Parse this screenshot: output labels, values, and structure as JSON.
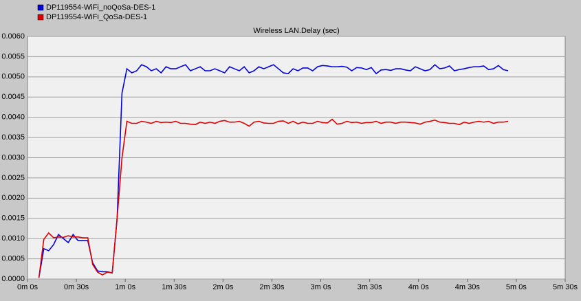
{
  "chart_data": {
    "type": "line",
    "title": "Wireless LAN.Delay (sec)",
    "x": [
      7,
      10,
      13,
      16,
      19,
      22,
      25,
      28,
      31,
      34,
      37,
      40,
      43,
      46,
      49,
      52,
      55,
      58,
      61,
      64,
      67,
      70,
      73,
      76,
      79,
      82,
      85,
      88,
      91,
      94,
      97,
      100,
      103,
      106,
      109,
      112,
      115,
      118,
      121,
      124,
      127,
      130,
      133,
      136,
      139,
      142,
      145,
      148,
      151,
      154,
      157,
      160,
      163,
      166,
      169,
      172,
      175,
      178,
      181,
      184,
      187,
      190,
      193,
      196,
      199,
      202,
      205,
      208,
      211,
      214,
      217,
      220,
      223,
      226,
      229,
      232,
      235,
      238,
      241,
      244,
      247,
      250,
      253,
      256,
      259,
      262,
      265,
      268,
      271,
      274,
      277,
      280,
      283,
      286,
      289,
      292,
      295
    ],
    "series": [
      {
        "name": "DP119554-WiFi_noQoSa-DES-1",
        "color": "#0000e0",
        "values": [
          3e-05,
          0.00075,
          0.0007,
          0.00085,
          0.0011,
          0.001,
          0.0009,
          0.0011,
          0.00095,
          0.00095,
          0.00095,
          0.0004,
          0.0002,
          0.00018,
          0.00018,
          0.00015,
          0.0015,
          0.0046,
          0.0052,
          0.0051,
          0.00515,
          0.0053,
          0.00525,
          0.00515,
          0.0052,
          0.0051,
          0.00525,
          0.0052,
          0.0052,
          0.00525,
          0.0053,
          0.00515,
          0.0052,
          0.00525,
          0.00515,
          0.00515,
          0.0052,
          0.00515,
          0.0051,
          0.00525,
          0.0052,
          0.00515,
          0.00525,
          0.0051,
          0.00515,
          0.00525,
          0.0052,
          0.00525,
          0.0053,
          0.0052,
          0.0051,
          0.00508,
          0.0052,
          0.00515,
          0.00522,
          0.00522,
          0.00515,
          0.00525,
          0.00528,
          0.00527,
          0.00525,
          0.00525,
          0.00526,
          0.00524,
          0.00515,
          0.00523,
          0.00522,
          0.00518,
          0.00523,
          0.00508,
          0.00517,
          0.00518,
          0.00516,
          0.0052,
          0.0052,
          0.00517,
          0.00515,
          0.00525,
          0.0052,
          0.00515,
          0.00518,
          0.0053,
          0.0052,
          0.00522,
          0.00527,
          0.00515,
          0.00518,
          0.0052,
          0.00523,
          0.00525,
          0.00525,
          0.00527,
          0.00518,
          0.0052,
          0.00528,
          0.00518,
          0.00515
        ]
      },
      {
        "name": "DP119554-WiFi_QoSa-DES-1",
        "color": "#e00000",
        "values": [
          3e-05,
          0.00098,
          0.00114,
          0.00102,
          0.00104,
          0.00103,
          0.00107,
          0.00104,
          0.00104,
          0.00102,
          0.00102,
          0.00036,
          0.00017,
          0.0001,
          0.00017,
          0.00015,
          0.0015,
          0.003,
          0.0039,
          0.00385,
          0.00385,
          0.0039,
          0.00388,
          0.00385,
          0.0039,
          0.00387,
          0.00388,
          0.00387,
          0.0039,
          0.00385,
          0.00385,
          0.00383,
          0.00382,
          0.00388,
          0.00385,
          0.00388,
          0.00385,
          0.0039,
          0.00392,
          0.00388,
          0.00388,
          0.0039,
          0.00385,
          0.00378,
          0.00388,
          0.0039,
          0.00386,
          0.00385,
          0.00385,
          0.0039,
          0.00391,
          0.00385,
          0.0039,
          0.00384,
          0.00388,
          0.00385,
          0.00385,
          0.0039,
          0.00387,
          0.00386,
          0.00395,
          0.00383,
          0.00385,
          0.0039,
          0.00387,
          0.00388,
          0.00385,
          0.00387,
          0.00387,
          0.0039,
          0.00385,
          0.00388,
          0.00388,
          0.00385,
          0.00388,
          0.00388,
          0.00387,
          0.00386,
          0.00383,
          0.00388,
          0.0039,
          0.00393,
          0.00388,
          0.00387,
          0.00385,
          0.00385,
          0.00382,
          0.00388,
          0.00385,
          0.00388,
          0.0039,
          0.00388,
          0.0039,
          0.00385,
          0.00388,
          0.00388,
          0.0039
        ]
      }
    ],
    "xlim": [
      0,
      330
    ],
    "xticks": [
      {
        "value": 0,
        "label": "0m 0s"
      },
      {
        "value": 30,
        "label": "0m 30s"
      },
      {
        "value": 60,
        "label": "1m 0s"
      },
      {
        "value": 90,
        "label": "1m 30s"
      },
      {
        "value": 120,
        "label": "2m 0s"
      },
      {
        "value": 150,
        "label": "2m 30s"
      },
      {
        "value": 180,
        "label": "3m 0s"
      },
      {
        "value": 210,
        "label": "3m 30s"
      },
      {
        "value": 240,
        "label": "4m 0s"
      },
      {
        "value": 270,
        "label": "4m 30s"
      },
      {
        "value": 300,
        "label": "5m 0s"
      },
      {
        "value": 330,
        "label": "5m 30s"
      }
    ],
    "ylim": [
      0,
      0.006
    ],
    "yticks": [
      {
        "value": 0,
        "label": "0.0000"
      },
      {
        "value": 0.0005,
        "label": "0.0005"
      },
      {
        "value": 0.001,
        "label": "0.0010"
      },
      {
        "value": 0.0015,
        "label": "0.0015"
      },
      {
        "value": 0.002,
        "label": "0.0020"
      },
      {
        "value": 0.0025,
        "label": "0.0025"
      },
      {
        "value": 0.003,
        "label": "0.0030"
      },
      {
        "value": 0.0035,
        "label": "0.0035"
      },
      {
        "value": 0.004,
        "label": "0.0040"
      },
      {
        "value": 0.0045,
        "label": "0.0045"
      },
      {
        "value": 0.005,
        "label": "0.0050"
      },
      {
        "value": 0.0055,
        "label": "0.0055"
      },
      {
        "value": 0.006,
        "label": "0.0060"
      }
    ],
    "grid": true
  }
}
